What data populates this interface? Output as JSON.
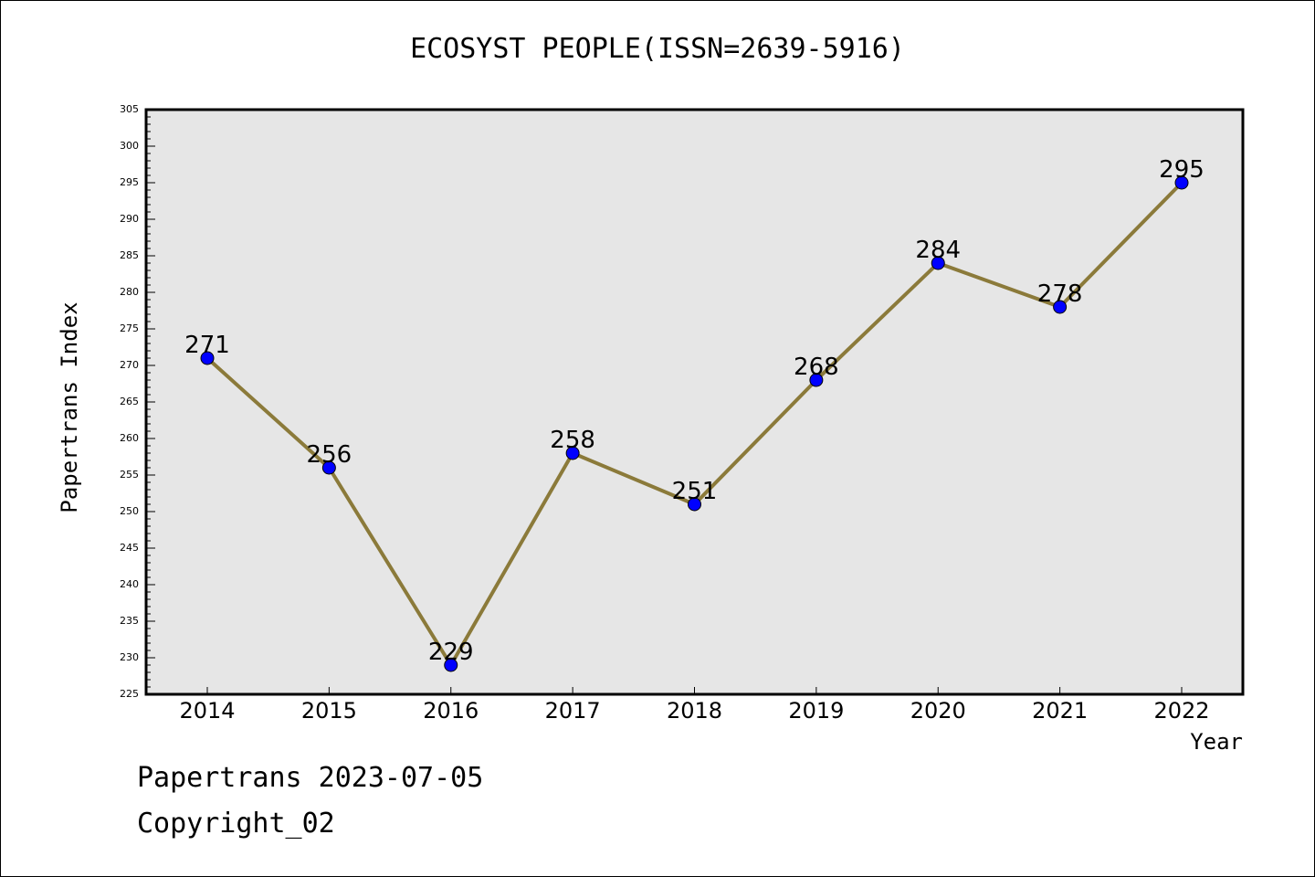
{
  "chart_data": {
    "type": "line",
    "title": "ECOSYST PEOPLE(ISSN=2639-5916)",
    "xlabel": "Year",
    "ylabel": "Papertrans Index",
    "categories": [
      "2014",
      "2015",
      "2016",
      "2017",
      "2018",
      "2019",
      "2020",
      "2021",
      "2022"
    ],
    "series": [
      {
        "values": [
          271,
          256,
          229,
          258,
          251,
          268,
          284,
          278,
          295
        ]
      }
    ],
    "ylim": [
      225,
      305
    ],
    "yticks": [
      225,
      230,
      235,
      240,
      245,
      250,
      255,
      260,
      265,
      270,
      275,
      280,
      285,
      290,
      295,
      300,
      305
    ],
    "grid": false,
    "data_labels": true,
    "colors": {
      "line": "#8b7a3a",
      "marker": "#0000ff",
      "plot_background": "#e6e6e6",
      "axis": "#000000"
    }
  },
  "footer": {
    "line1": "Papertrans 2023-07-05",
    "line2": "Copyright_02"
  }
}
